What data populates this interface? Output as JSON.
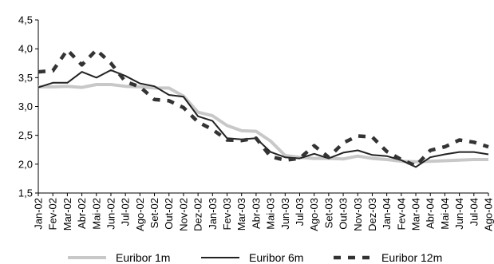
{
  "chart_data": {
    "type": "line",
    "title": "",
    "xlabel": "",
    "ylabel": "",
    "ylim": [
      1.5,
      4.5
    ],
    "yticks": [
      "1,5",
      "2,0",
      "2,5",
      "3,0",
      "3,5",
      "4,0",
      "4,5"
    ],
    "grid": false,
    "legend_position": "bottom",
    "categories": [
      "Jan-02",
      "Fev-02",
      "Mar-02",
      "Abr-02",
      "Mai-02",
      "Jun-02",
      "Jul-02",
      "Ago-02",
      "Set-02",
      "Out-02",
      "Nov-02",
      "Dez-02",
      "Jan-03",
      "Fev-03",
      "Mar-03",
      "Abr-03",
      "Mai-03",
      "Jun-03",
      "Jul-03",
      "Ago-03",
      "Set-03",
      "Out-03",
      "Nov-03",
      "Dez-03",
      "Jan-04",
      "Fev-04",
      "Mar-04",
      "Abr-04",
      "Mai-04",
      "Jun-04",
      "Jul-04",
      "Ago-04"
    ],
    "series": [
      {
        "name": "Euribor 1m",
        "color": "#c8c8c8",
        "style": "solid-thick",
        "values": [
          3.34,
          3.34,
          3.35,
          3.33,
          3.38,
          3.38,
          3.35,
          3.34,
          3.32,
          3.32,
          3.18,
          2.9,
          2.84,
          2.67,
          2.58,
          2.57,
          2.4,
          2.15,
          2.12,
          2.1,
          2.1,
          2.09,
          2.14,
          2.1,
          2.08,
          2.05,
          2.04,
          2.05,
          2.06,
          2.07,
          2.08,
          2.08
        ]
      },
      {
        "name": "Euribor 6m",
        "color": "#222222",
        "style": "solid",
        "values": [
          3.33,
          3.41,
          3.41,
          3.6,
          3.5,
          3.63,
          3.53,
          3.4,
          3.35,
          3.2,
          3.17,
          2.83,
          2.75,
          2.45,
          2.43,
          2.45,
          2.21,
          2.12,
          2.1,
          2.18,
          2.1,
          2.2,
          2.24,
          2.16,
          2.14,
          2.07,
          1.95,
          2.12,
          2.17,
          2.21,
          2.21,
          2.17
        ]
      },
      {
        "name": "Euribor 12m",
        "color": "#333333",
        "style": "dashed-thick",
        "values": [
          3.6,
          3.62,
          3.98,
          3.72,
          3.98,
          3.75,
          3.43,
          3.34,
          3.12,
          3.1,
          2.98,
          2.73,
          2.6,
          2.42,
          2.41,
          2.45,
          2.13,
          2.07,
          2.1,
          2.32,
          2.12,
          2.37,
          2.49,
          2.47,
          2.22,
          2.08,
          1.97,
          2.24,
          2.3,
          2.42,
          2.38,
          2.3
        ]
      }
    ]
  }
}
